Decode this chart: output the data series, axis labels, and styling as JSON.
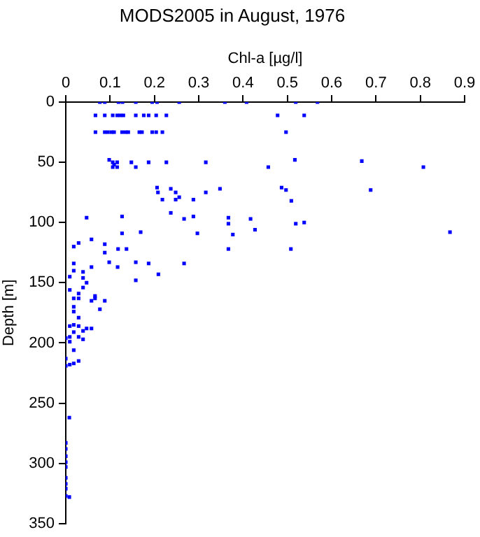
{
  "chart_data": {
    "type": "scatter",
    "title": "MODS2005 in August, 1976",
    "xlabel": "Chl-a [µg/l]",
    "ylabel": "Depth [m]",
    "xlim": [
      0,
      0.9
    ],
    "xticks": [
      0,
      0.1,
      0.2,
      0.3,
      0.4,
      0.5,
      0.6,
      0.7,
      0.8,
      0.9
    ],
    "ylim": [
      350,
      0
    ],
    "yticks": [
      0,
      50,
      100,
      150,
      200,
      250,
      300,
      350
    ],
    "marker": "square",
    "series": [
      {
        "color": "#0000ff",
        "x": [
          0.077,
          0.088,
          0.119,
          0.128,
          0.158,
          0.195,
          0.206,
          0.256,
          0.359,
          0.408,
          0.519,
          0.568,
          0.067,
          0.088,
          0.106,
          0.116,
          0.123,
          0.13,
          0.158,
          0.176,
          0.187,
          0.204,
          0.227,
          0.478,
          0.538,
          0.067,
          0.088,
          0.095,
          0.103,
          0.109,
          0.127,
          0.135,
          0.141,
          0.166,
          0.172,
          0.195,
          0.204,
          0.218,
          0.497,
          0.098,
          0.106,
          0.106,
          0.109,
          0.116,
          0.116,
          0.148,
          0.158,
          0.187,
          0.227,
          0.316,
          0.457,
          0.517,
          0.668,
          0.807,
          0.487,
          0.497,
          0.509,
          0.688,
          0.206,
          0.208,
          0.218,
          0.237,
          0.248,
          0.248,
          0.256,
          0.288,
          0.316,
          0.348,
          0.367,
          0.367,
          0.417,
          0.427,
          0.377,
          0.367,
          0.519,
          0.538,
          0.867,
          0.508,
          0.047,
          0.127,
          0.267,
          0.267,
          0.297,
          0.288,
          0.237,
          0.029,
          0.018,
          0.058,
          0.088,
          0.127,
          0.169,
          0.088,
          0.118,
          0.137,
          0.098,
          0.158,
          0.187,
          0.018,
          0.058,
          0.117,
          0.018,
          0.039,
          0.209,
          0.009,
          0.039,
          0.158,
          0.047,
          0.039,
          0.009,
          0.029,
          0.018,
          0.029,
          0.066,
          0.066,
          0.058,
          0.088,
          0.018,
          0.018,
          0.077,
          0.029,
          0.009,
          0.018,
          0.029,
          0.047,
          0.058,
          0.018,
          0.039,
          0.029,
          0.009,
          0.0,
          0.039,
          0.009,
          0.018,
          0.0,
          0.029,
          0.0,
          0.009,
          0.018,
          0.008,
          0.0,
          0.0,
          0.0,
          0.0,
          0.0,
          0.0,
          0.0,
          0.0,
          0.0,
          0.008
        ],
        "values": [
          0,
          0,
          0,
          0,
          0,
          0,
          0,
          0,
          0,
          0,
          0,
          0,
          11,
          11,
          11,
          11,
          11,
          11,
          11,
          11,
          11,
          11,
          11,
          11,
          11,
          25,
          25,
          25,
          25,
          25,
          25,
          25,
          25,
          25,
          25,
          25,
          25,
          25,
          25,
          48,
          50,
          54,
          52,
          50,
          54,
          50,
          54,
          50,
          50,
          50,
          54,
          48,
          49,
          54,
          71,
          73,
          82,
          73,
          71,
          75,
          81,
          72,
          75,
          81,
          79,
          81,
          75,
          72,
          96,
          101,
          97,
          106,
          110,
          122,
          101,
          100,
          108,
          122,
          96,
          95,
          97,
          134,
          109,
          95,
          92,
          117,
          120,
          114,
          118,
          109,
          108,
          125,
          122,
          122,
          133,
          133,
          134,
          134,
          137,
          137,
          140,
          141,
          143,
          145,
          146,
          148,
          150,
          154,
          156,
          159,
          163,
          163,
          161,
          163,
          165,
          165,
          170,
          174,
          172,
          179,
          186,
          185,
          186,
          188,
          188,
          191,
          190,
          195,
          195,
          196,
          197,
          199,
          206,
          213,
          215,
          219,
          218,
          217,
          262,
          283,
          288,
          294,
          299,
          303,
          312,
          317,
          321,
          327,
          328
        ]
      }
    ]
  }
}
